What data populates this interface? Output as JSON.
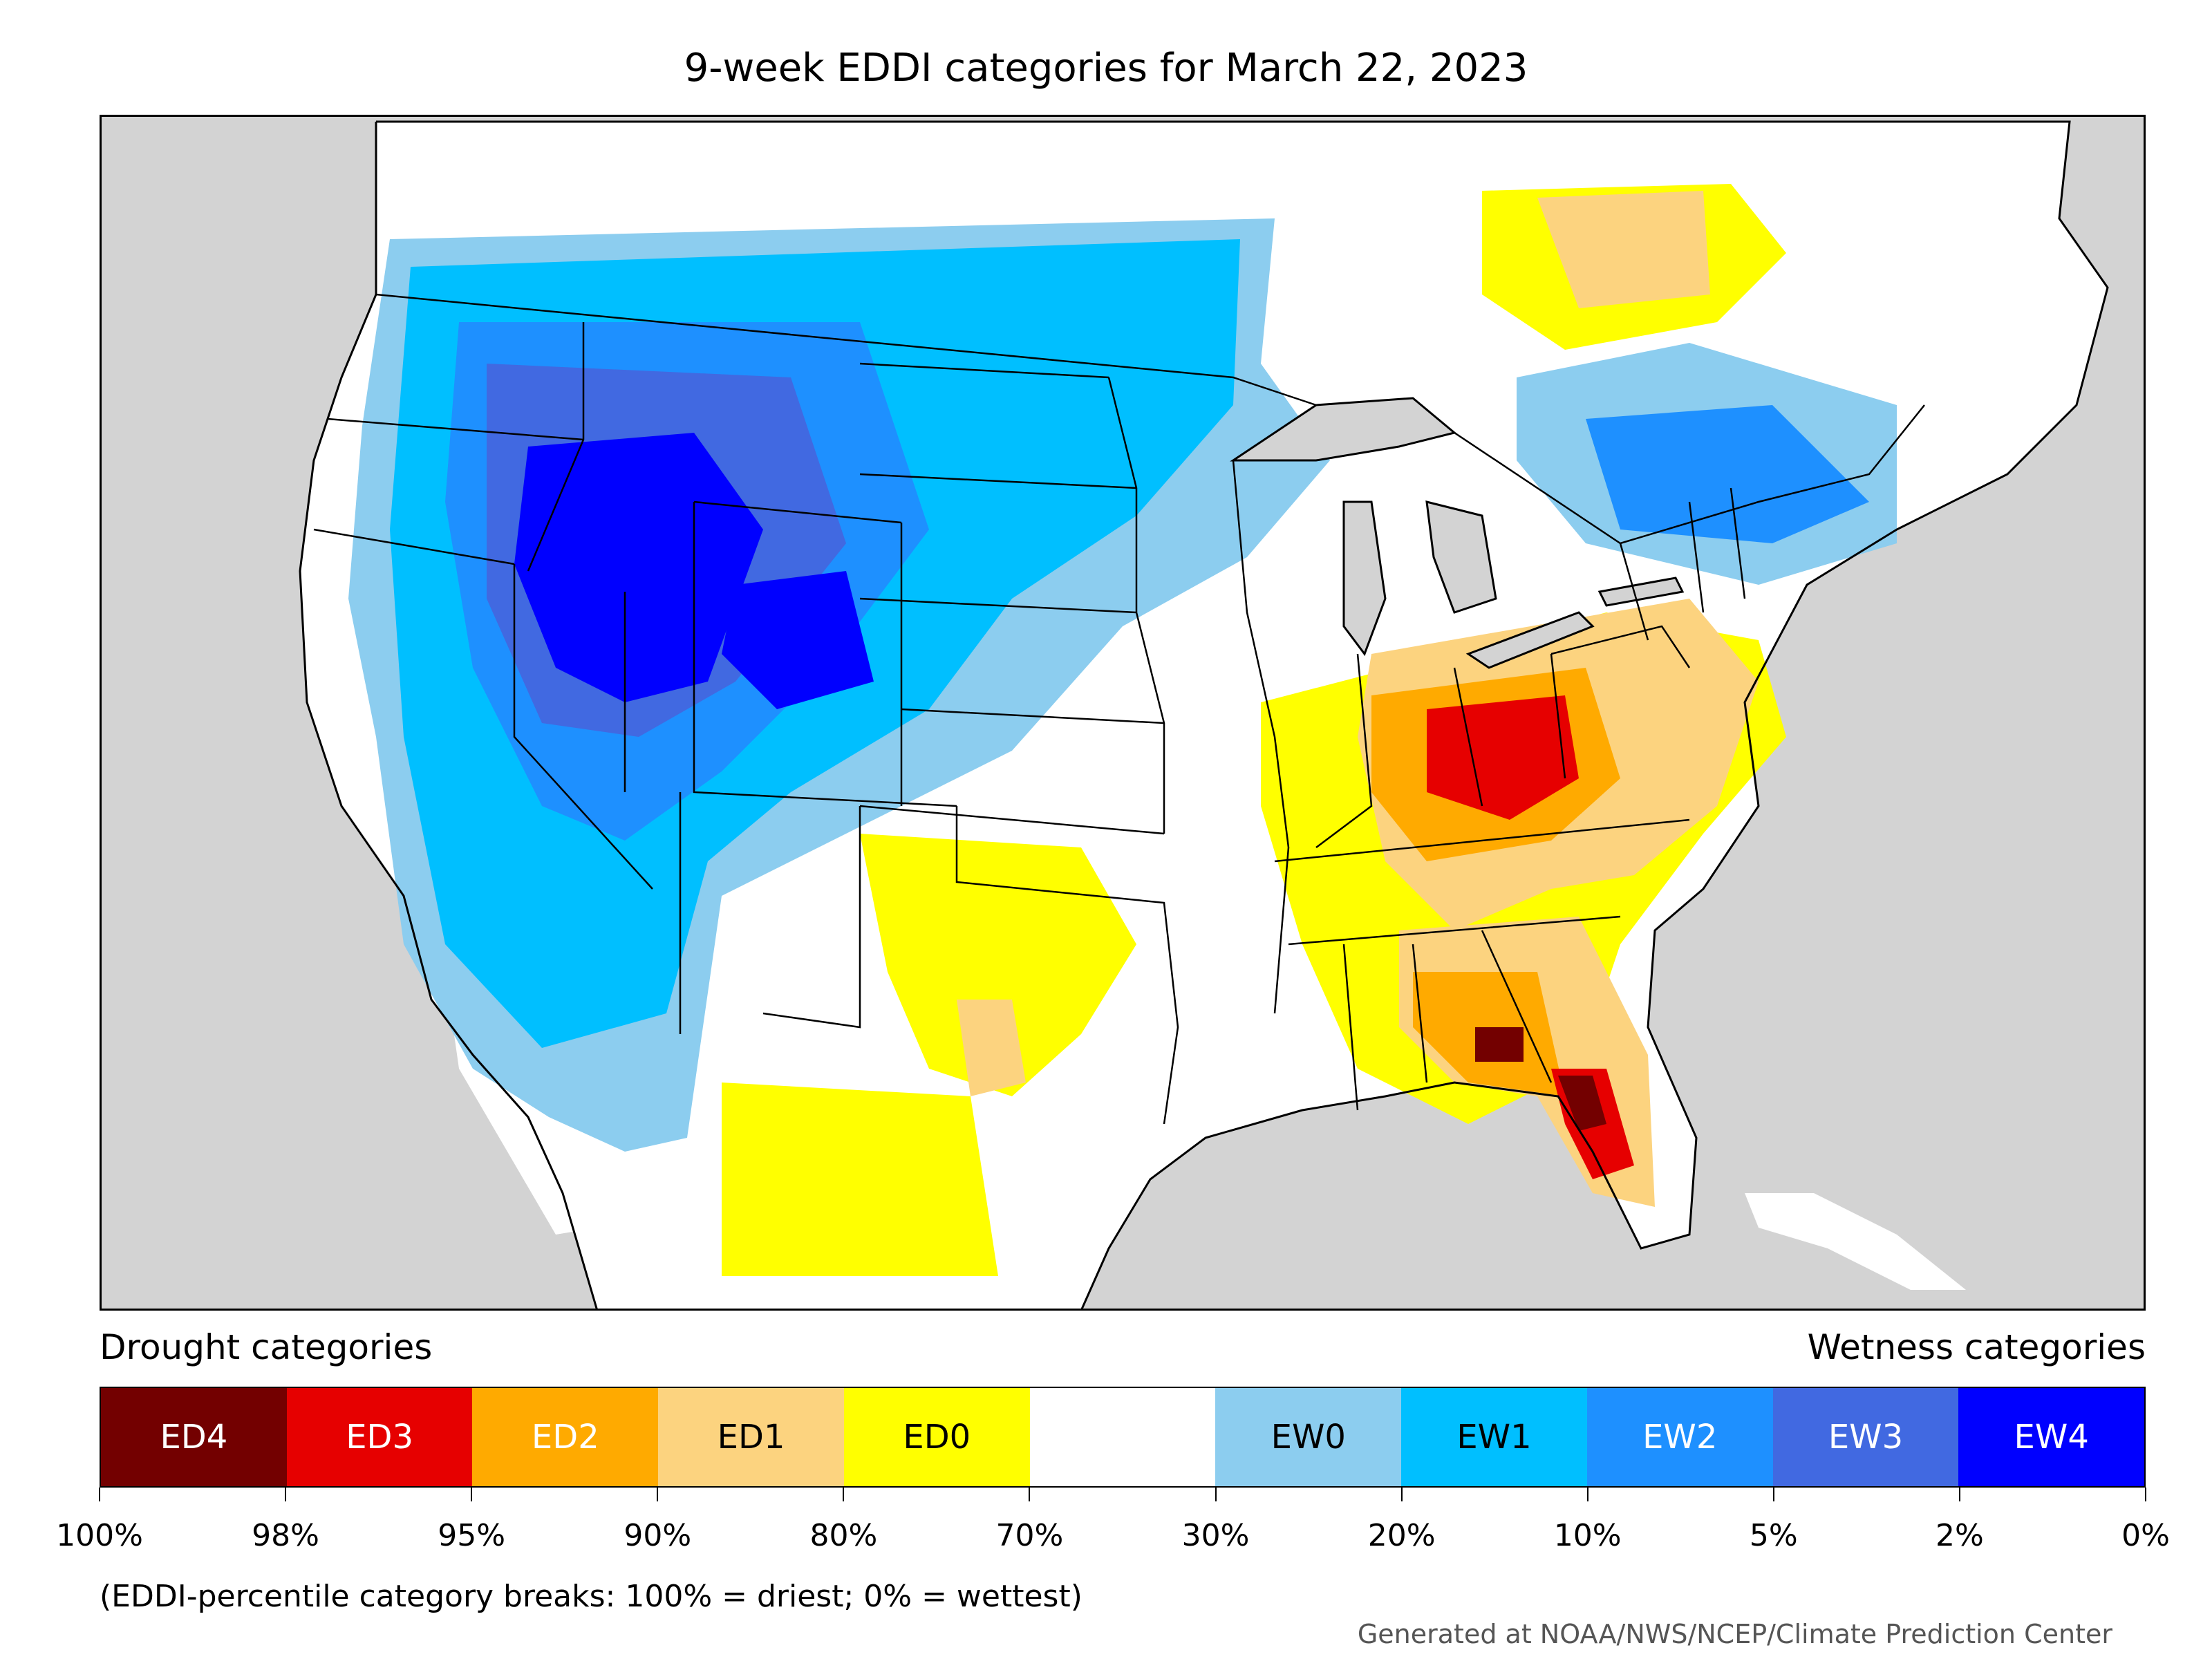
{
  "title": "9-week EDDI categories for March 22, 2023",
  "legend": {
    "drought_heading": "Drought categories",
    "wetness_heading": "Wetness categories",
    "categories": [
      {
        "label": "ED4",
        "color": "#730000",
        "text_color": "#ffffff"
      },
      {
        "label": "ED3",
        "color": "#e60000",
        "text_color": "#ffffff"
      },
      {
        "label": "ED2",
        "color": "#ffaa00",
        "text_color": "#ffffff"
      },
      {
        "label": "ED1",
        "color": "#fcd37f",
        "text_color": "#000000"
      },
      {
        "label": "ED0",
        "color": "#ffff00",
        "text_color": "#000000"
      },
      {
        "label": "",
        "color": "#ffffff",
        "text_color": "#000000"
      },
      {
        "label": "EW0",
        "color": "#8ccdef",
        "text_color": "#000000"
      },
      {
        "label": "EW1",
        "color": "#00bfff",
        "text_color": "#000000"
      },
      {
        "label": "EW2",
        "color": "#1e90ff",
        "text_color": "#ffffff"
      },
      {
        "label": "EW3",
        "color": "#4169e1",
        "text_color": "#ffffff"
      },
      {
        "label": "EW4",
        "color": "#0000ff",
        "text_color": "#ffffff"
      }
    ],
    "breaks": [
      "100%",
      "98%",
      "95%",
      "90%",
      "80%",
      "70%",
      "30%",
      "20%",
      "10%",
      "5%",
      "2%",
      "0%"
    ]
  },
  "note": "(EDDI-percentile category breaks: 100% = driest; 0% = wettest)",
  "credit": "Generated at NOAA/NWS/NCEP/Climate Prediction Center",
  "map_colors": {
    "ocean": "#d3d3d3",
    "land": "#ffffff",
    "border": "#000000"
  }
}
